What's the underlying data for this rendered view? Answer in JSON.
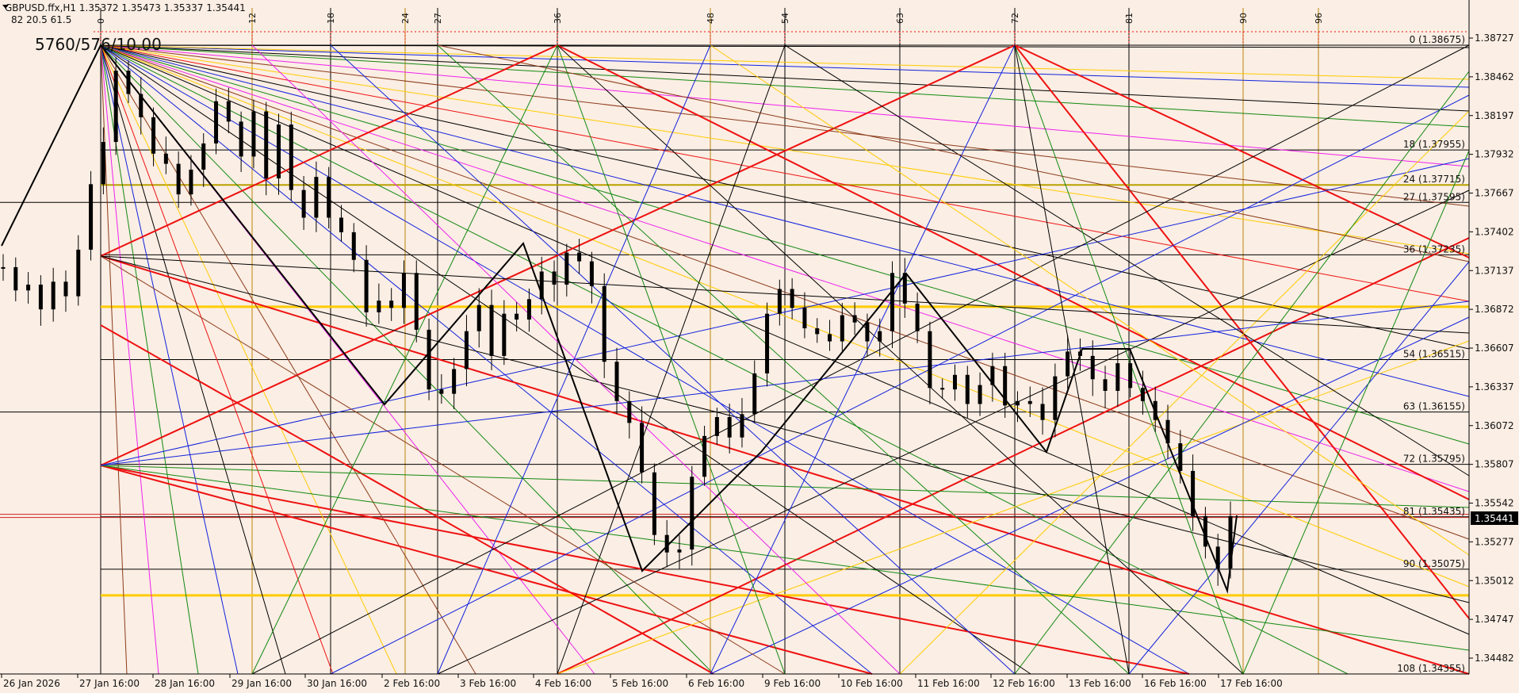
{
  "header": {
    "symbol_line": "GBPUSD.ffx,H1  1.35372 1.35473 1.35337 1.35441",
    "indicator_line": "82  20.5  61.5",
    "big_label": "5760/576/10.00"
  },
  "price_badge": "1.35441",
  "colors": {
    "background": "#fbeee4",
    "red": "#ee1111",
    "gold": "#ffcc00",
    "black": "#000000",
    "blue": "#1122dd",
    "green": "#118811",
    "magenta": "#ee22ee",
    "brown": "#8b3a1a",
    "badge": "#000000"
  },
  "chart_data": {
    "type": "line",
    "title": "GBPUSD.ffx,H1",
    "ylim": [
      1.3435,
      1.389
    ],
    "y_ticks": [
      "1.38727",
      "1.38462",
      "1.38197",
      "1.37932",
      "1.37667",
      "1.37402",
      "1.37137",
      "1.36872",
      "1.36607",
      "1.36337",
      "1.36072",
      "1.35807",
      "1.35542",
      "1.35277",
      "1.35012",
      "1.34747",
      "1.34482"
    ],
    "y_tick_values": [
      1.38727,
      1.38462,
      1.38197,
      1.37932,
      1.37667,
      1.37402,
      1.37137,
      1.36872,
      1.36607,
      1.36337,
      1.36072,
      1.35807,
      1.35542,
      1.35277,
      1.35012,
      1.34747,
      1.34482
    ],
    "x_ticks": [
      "26 Jan 2026",
      "27 Jan 16:00",
      "28 Jan 16:00",
      "29 Jan 16:00",
      "30 Jan 16:00",
      "2 Feb 16:00",
      "3 Feb 16:00",
      "4 Feb 16:00",
      "5 Feb 16:00",
      "6 Feb 16:00",
      "9 Feb 16:00",
      "10 Feb 16:00",
      "11 Feb 16:00",
      "12 Feb 16:00",
      "13 Feb 16:00",
      "16 Feb 16:00",
      "17 Feb 16:00"
    ],
    "levels": [
      {
        "label": "0 (1.38675)",
        "value": 1.38675
      },
      {
        "label": "18 (1.37955)",
        "value": 1.37955
      },
      {
        "label": "24 (1.37715)",
        "value": 1.37715
      },
      {
        "label": "27 (1.37595)",
        "value": 1.37595
      },
      {
        "label": "36 (1.37235)",
        "value": 1.37235
      },
      {
        "label": "54 (1.36515)",
        "value": 1.36515
      },
      {
        "label": "63 (1.36155)",
        "value": 1.36155
      },
      {
        "label": "72 (1.35795)",
        "value": 1.35795
      },
      {
        "label": "81 (1.35435)",
        "value": 1.35435
      },
      {
        "label": "90 (1.35075)",
        "value": 1.35075
      },
      {
        "label": "108 (1.34355)",
        "value": 1.34355
      }
    ],
    "time_divisions": [
      "0",
      "12",
      "18",
      "24",
      "27",
      "36",
      "48",
      "54",
      "63",
      "72",
      "81",
      "90",
      "96"
    ],
    "current_price": 1.35441,
    "close_series": [
      1.3715,
      1.3699,
      1.3703,
      1.3686,
      1.3705,
      1.3695,
      1.3727,
      1.3772,
      1.3801,
      1.385,
      1.3834,
      1.3818,
      1.3793,
      1.3786,
      1.3765,
      1.3782,
      1.38,
      1.3829,
      1.3815,
      1.3791,
      1.3822,
      1.3776,
      1.3813,
      1.3768,
      1.3749,
      1.3777,
      1.3749,
      1.3739,
      1.372,
      1.3684,
      1.3692,
      1.3687,
      1.3711,
      1.3672,
      1.3631,
      1.3628,
      1.3645,
      1.3671,
      1.3689,
      1.3654,
      1.3683,
      1.3679,
      1.3693,
      1.3712,
      1.3703,
      1.3725,
      1.3719,
      1.3702,
      1.365,
      1.3623,
      1.3608,
      1.3574,
      1.3531,
      1.3519,
      1.3521,
      1.3571,
      1.3599,
      1.3612,
      1.3598,
      1.3614,
      1.3642,
      1.3683,
      1.37,
      1.3687,
      1.3673,
      1.3669,
      1.3664,
      1.3682,
      1.3677,
      1.3664,
      1.3671,
      1.3711,
      1.369,
      1.3671,
      1.3632,
      1.3631,
      1.3641,
      1.3621,
      1.3634,
      1.3647,
      1.362,
      1.3623,
      1.3621,
      1.361,
      1.364,
      1.3657,
      1.3654,
      1.3638,
      1.363,
      1.3649,
      1.3632,
      1.3623,
      1.361,
      1.3594,
      1.3575,
      1.3544,
      1.3523,
      1.3508,
      1.3544
    ]
  }
}
